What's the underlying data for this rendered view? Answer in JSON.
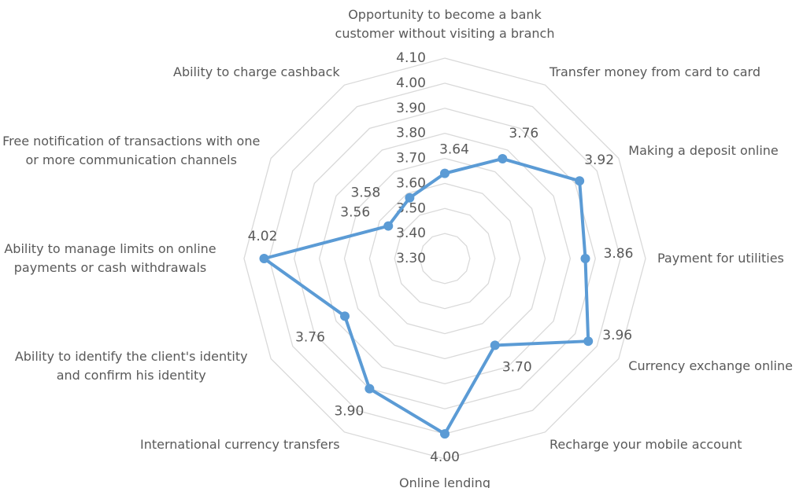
{
  "chart_data": {
    "type": "radar",
    "categories": [
      "Opportunity to become a bank customer without visiting a branch",
      "Transfer money from card to card",
      "Making a deposit online",
      "Payment for utilities",
      "Currency exchange online",
      "Recharge your mobile account",
      "Online lending",
      "International currency transfers",
      "Ability to identify the client's identity and confirm his identity",
      "Ability to manage limits on online payments or cash withdrawals",
      "Free notification of transactions with one or more communication channels",
      "Ability to charge cashback"
    ],
    "values": [
      3.64,
      3.76,
      3.92,
      3.86,
      3.96,
      3.7,
      4.0,
      3.9,
      3.76,
      4.02,
      3.56,
      3.58
    ],
    "value_labels": [
      "3.64",
      "3.76",
      "3.92",
      "3.86",
      "3.96",
      "3.70",
      "4.00",
      "3.90",
      "3.76",
      "4.02",
      "3.56",
      "3.58"
    ],
    "color": "#5b9bd5",
    "ylim": [
      3.3,
      4.1
    ],
    "yticks": [
      {
        "value": 3.3,
        "label": "3.30"
      },
      {
        "value": 3.4,
        "label": "3.40"
      },
      {
        "value": 3.5,
        "label": "3.50"
      },
      {
        "value": 3.6,
        "label": "3.60"
      },
      {
        "value": 3.7,
        "label": "3.70"
      },
      {
        "value": 3.8,
        "label": "3.80"
      },
      {
        "value": 3.9,
        "label": "3.90"
      },
      {
        "value": 4.0,
        "label": "4.00"
      },
      {
        "value": 4.1,
        "label": "4.10"
      }
    ],
    "grid": true
  }
}
